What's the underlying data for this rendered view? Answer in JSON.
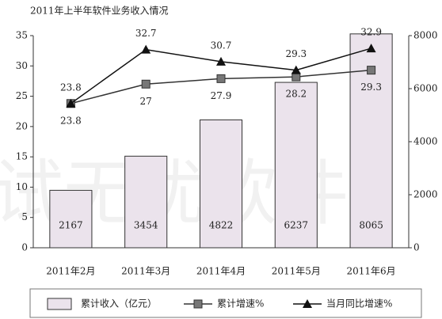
{
  "chart_data": {
    "type": "bar-line",
    "title": "2011年上半年软件业务收入情况",
    "watermark": "试无忧软件",
    "categories": [
      "2011年2月",
      "2011年3月",
      "2011年4月",
      "2011年5月",
      "2011年6月"
    ],
    "ylim": [
      0,
      35
    ],
    "yticks": [
      0,
      5,
      10,
      15,
      20,
      25,
      30,
      35
    ],
    "y2lim": [
      0,
      8000
    ],
    "y2ticks": [
      0,
      2000,
      4000,
      6000,
      8000
    ],
    "series": [
      {
        "name": "累计收入（亿元）",
        "kind": "bar",
        "axis": "y2",
        "color": "#ebe3ec",
        "values": [
          2167,
          3454,
          4822,
          6237,
          8065
        ]
      },
      {
        "name": "累计增速%",
        "kind": "line",
        "marker": "square",
        "color": "#333333",
        "values": [
          23.8,
          27,
          27.9,
          28.2,
          29.3
        ]
      },
      {
        "name": "当月同比增速%",
        "kind": "line",
        "marker": "triangle",
        "color": "#111111",
        "values": [
          23.8,
          32.7,
          30.7,
          29.3,
          32.9
        ]
      }
    ]
  }
}
